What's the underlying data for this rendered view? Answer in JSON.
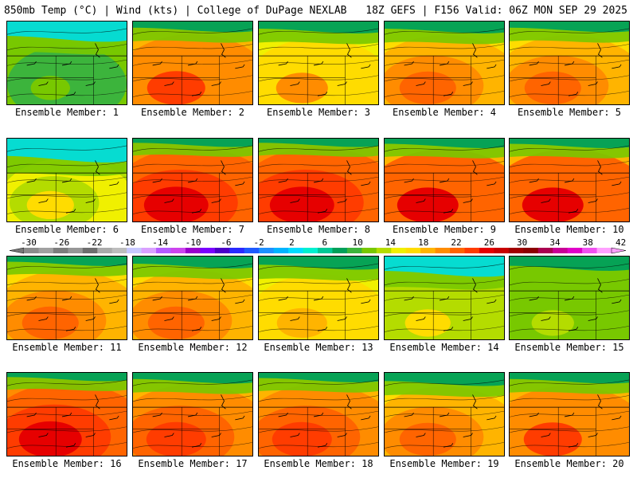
{
  "header": {
    "left": "850mb Temp (°C) | Wind (kts) | College of DuPage NEXLAB",
    "right": "18Z GEFS | F156 Valid: 06Z MON SEP 29 2025"
  },
  "colorbar": {
    "ticks": [
      "-30",
      "-26",
      "-22",
      "-18",
      "-14",
      "-10",
      "-6",
      "-2",
      "2",
      "6",
      "10",
      "14",
      "18",
      "22",
      "26",
      "30",
      "34",
      "38",
      "42"
    ],
    "colors": [
      "#8c8c8c",
      "#a0a0a0",
      "#7d7d7d",
      "#969696",
      "#6e6e6e",
      "#aaaaaa",
      "#bdbdbd",
      "#c8c8ff",
      "#d9a0ff",
      "#b45aff",
      "#cc44ee",
      "#9900cc",
      "#7a00ff",
      "#4b00c8",
      "#2a2aff",
      "#1e5aff",
      "#1e90ff",
      "#00b4ff",
      "#00dcff",
      "#00f0d0",
      "#00c896",
      "#00a05a",
      "#3cb43c",
      "#78c800",
      "#b4dc00",
      "#f0f000",
      "#ffdc00",
      "#ffb400",
      "#ff8c00",
      "#ff6400",
      "#ff3c00",
      "#e60000",
      "#c80000",
      "#a00000",
      "#8c0000",
      "#aa0050",
      "#c80096",
      "#e000c8",
      "#f050f0",
      "#ffa0ff"
    ]
  },
  "members": [
    {
      "label": "Ensemble Member: 1",
      "warm": 0.15,
      "cold": 0.55
    },
    {
      "label": "Ensemble Member: 2",
      "warm": 0.75,
      "cold": 0.15
    },
    {
      "label": "Ensemble Member: 3",
      "warm": 0.55,
      "cold": 0.2
    },
    {
      "label": "Ensemble Member: 4",
      "warm": 0.7,
      "cold": 0.2
    },
    {
      "label": "Ensemble Member: 5",
      "warm": 0.7,
      "cold": 0.15
    },
    {
      "label": "Ensemble Member: 6",
      "warm": 0.4,
      "cold": 0.7
    },
    {
      "label": "Ensemble Member: 7",
      "warm": 0.95,
      "cold": 0.05
    },
    {
      "label": "Ensemble Member: 8",
      "warm": 0.95,
      "cold": 0.05
    },
    {
      "label": "Ensemble Member: 9",
      "warm": 0.85,
      "cold": 0.1
    },
    {
      "label": "Ensemble Member: 10",
      "warm": 0.85,
      "cold": 0.1
    },
    {
      "label": "Ensemble Member: 11",
      "warm": 0.7,
      "cold": 0.1
    },
    {
      "label": "Ensemble Member: 12",
      "warm": 0.7,
      "cold": 0.2
    },
    {
      "label": "Ensemble Member: 13",
      "warm": 0.5,
      "cold": 0.25
    },
    {
      "label": "Ensemble Member: 14",
      "warm": 0.35,
      "cold": 0.55
    },
    {
      "label": "Ensemble Member: 15",
      "warm": 0.25,
      "cold": 0.3
    },
    {
      "label": "Ensemble Member: 16",
      "warm": 0.9,
      "cold": 0.05
    },
    {
      "label": "Ensemble Member: 17",
      "warm": 0.8,
      "cold": 0.15
    },
    {
      "label": "Ensemble Member: 18",
      "warm": 0.8,
      "cold": 0.1
    },
    {
      "label": "Ensemble Member: 19",
      "warm": 0.7,
      "cold": 0.25
    },
    {
      "label": "Ensemble Member: 20",
      "warm": 0.75,
      "cold": 0.15
    }
  ]
}
